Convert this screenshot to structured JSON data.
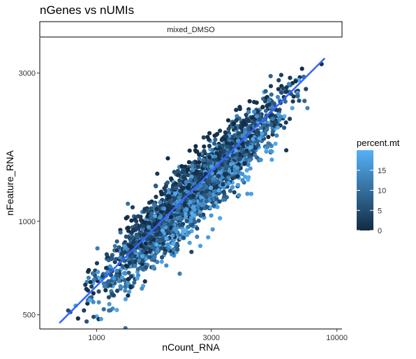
{
  "chart_data": {
    "type": "scatter",
    "title": "nGenes vs nUMIs",
    "facet_label": "mixed_DMSO",
    "xlabel": "nCount_RNA",
    "ylabel": "nFeature_RNA",
    "x_scale": "log10",
    "y_scale": "log10",
    "xlim": [
      580,
      10500
    ],
    "ylim": [
      450,
      3900
    ],
    "x_ticks": [
      1000,
      3000,
      10000
    ],
    "x_tick_labels": [
      "1000",
      "3000",
      "10000"
    ],
    "y_ticks": [
      500,
      1000,
      3000
    ],
    "y_tick_labels": [
      "500",
      "1000",
      "3000"
    ],
    "grid": false,
    "color_by": "percent.mt",
    "legend": {
      "title": "percent.mt",
      "placement": "right",
      "range": [
        0,
        20
      ],
      "ticks": [
        0,
        5,
        10,
        15
      ],
      "tick_labels": [
        "0",
        "5",
        "10",
        "15"
      ],
      "color_low": "#132b43",
      "color_high": "#56b1f7"
    },
    "point_color_scale": {
      "low": "#132b43",
      "high": "#56b1f7"
    },
    "cloud": {
      "n_points": 2600,
      "x_range": [
        700,
        9000
      ],
      "trend": [
        {
          "x": 700,
          "y": 470
        },
        {
          "x": 9000,
          "y": 3250
        }
      ],
      "spread_log10": 0.05
    },
    "trend_line": {
      "method": "lm",
      "color": "#3366ff",
      "points": [
        {
          "x": 700,
          "y": 470
        },
        {
          "x": 8900,
          "y": 3350
        }
      ]
    }
  }
}
